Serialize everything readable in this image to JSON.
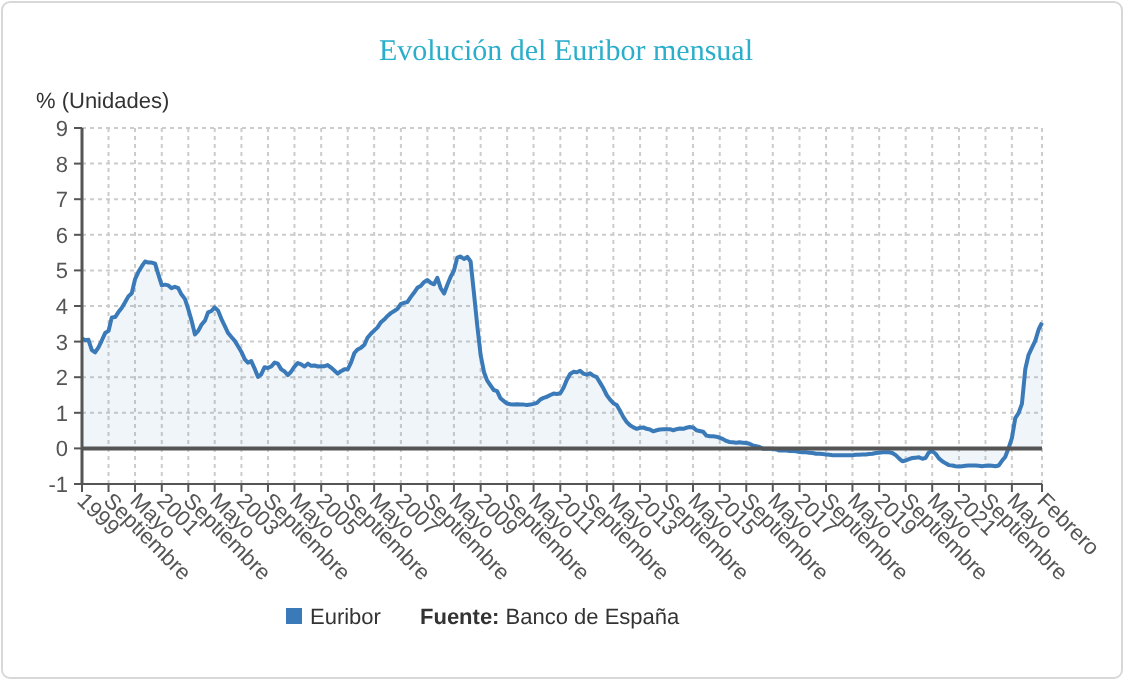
{
  "chart_data": {
    "type": "area",
    "title": "Evolución del Euribor mensual",
    "ylabel": "% (Unidades)",
    "xlim": [
      "1999-01",
      "2023-02"
    ],
    "xticks": [
      {
        "value": "1999-01",
        "label": "1999"
      },
      {
        "value": "1999-09",
        "label": "Septiembre"
      },
      {
        "value": "2000-05",
        "label": "Mayo"
      },
      {
        "value": "2001-01",
        "label": "2001"
      },
      {
        "value": "2001-09",
        "label": "Septiembre"
      },
      {
        "value": "2002-05",
        "label": "Mayo"
      },
      {
        "value": "2003-01",
        "label": "2003"
      },
      {
        "value": "2003-09",
        "label": "Septiembre"
      },
      {
        "value": "2004-05",
        "label": "Mayo"
      },
      {
        "value": "2005-01",
        "label": "2005"
      },
      {
        "value": "2005-09",
        "label": "Septiembre"
      },
      {
        "value": "2006-05",
        "label": "Mayo"
      },
      {
        "value": "2007-01",
        "label": "2007"
      },
      {
        "value": "2007-09",
        "label": "Septiembre"
      },
      {
        "value": "2008-05",
        "label": "Mayo"
      },
      {
        "value": "2009-01",
        "label": "2009"
      },
      {
        "value": "2009-09",
        "label": "Septiembre"
      },
      {
        "value": "2010-05",
        "label": "Mayo"
      },
      {
        "value": "2011-01",
        "label": "2011"
      },
      {
        "value": "2011-09",
        "label": "Septiembre"
      },
      {
        "value": "2012-05",
        "label": "Mayo"
      },
      {
        "value": "2013-01",
        "label": "2013"
      },
      {
        "value": "2013-09",
        "label": "Septiembre"
      },
      {
        "value": "2014-05",
        "label": "Mayo"
      },
      {
        "value": "2015-01",
        "label": "2015"
      },
      {
        "value": "2015-09",
        "label": "Septiembre"
      },
      {
        "value": "2016-05",
        "label": "Mayo"
      },
      {
        "value": "2017-01",
        "label": "2017"
      },
      {
        "value": "2017-09",
        "label": "Septiembre"
      },
      {
        "value": "2018-05",
        "label": "Mayo"
      },
      {
        "value": "2019-01",
        "label": "2019"
      },
      {
        "value": "2019-09",
        "label": "Septiembre"
      },
      {
        "value": "2020-05",
        "label": "Mayo"
      },
      {
        "value": "2021-01",
        "label": "2021"
      },
      {
        "value": "2021-09",
        "label": "Septiembre"
      },
      {
        "value": "2022-05",
        "label": "Mayo"
      },
      {
        "value": "2023-02",
        "label": "Febrero"
      }
    ],
    "ylim": [
      -1,
      9
    ],
    "yticks": [
      -1,
      0,
      1,
      2,
      3,
      4,
      5,
      6,
      7,
      8,
      9
    ],
    "grid": true,
    "legend": "bottom",
    "marker": "none",
    "ref_lines": [
      {
        "axis": "y",
        "value": 0,
        "color": "#555555"
      }
    ],
    "annotations": [
      "Fuente: Banco de España"
    ],
    "series": [
      {
        "name": "Euribor",
        "color": "#3a7ab8",
        "x": [
          "1999-01",
          "1999-02",
          "1999-03",
          "1999-04",
          "1999-05",
          "1999-06",
          "1999-07",
          "1999-08",
          "1999-09",
          "1999-10",
          "1999-11",
          "1999-12",
          "2000-01",
          "2000-02",
          "2000-03",
          "2000-04",
          "2000-05",
          "2000-06",
          "2000-07",
          "2000-08",
          "2000-09",
          "2000-10",
          "2000-11",
          "2000-12",
          "2001-01",
          "2001-02",
          "2001-03",
          "2001-04",
          "2001-05",
          "2001-06",
          "2001-07",
          "2001-08",
          "2001-09",
          "2001-10",
          "2001-11",
          "2001-12",
          "2002-01",
          "2002-02",
          "2002-03",
          "2002-04",
          "2002-05",
          "2002-06",
          "2002-07",
          "2002-08",
          "2002-09",
          "2002-10",
          "2002-11",
          "2002-12",
          "2003-01",
          "2003-02",
          "2003-03",
          "2003-04",
          "2003-05",
          "2003-06",
          "2003-07",
          "2003-08",
          "2003-09",
          "2003-10",
          "2003-11",
          "2003-12",
          "2004-01",
          "2004-02",
          "2004-03",
          "2004-04",
          "2004-05",
          "2004-06",
          "2004-07",
          "2004-08",
          "2004-09",
          "2004-10",
          "2004-11",
          "2004-12",
          "2005-01",
          "2005-02",
          "2005-03",
          "2005-04",
          "2005-05",
          "2005-06",
          "2005-07",
          "2005-08",
          "2005-09",
          "2005-10",
          "2005-11",
          "2005-12",
          "2006-01",
          "2006-02",
          "2006-03",
          "2006-04",
          "2006-05",
          "2006-06",
          "2006-07",
          "2006-08",
          "2006-09",
          "2006-10",
          "2006-11",
          "2006-12",
          "2007-01",
          "2007-02",
          "2007-03",
          "2007-04",
          "2007-05",
          "2007-06",
          "2007-07",
          "2007-08",
          "2007-09",
          "2007-10",
          "2007-11",
          "2007-12",
          "2008-01",
          "2008-02",
          "2008-03",
          "2008-04",
          "2008-05",
          "2008-06",
          "2008-07",
          "2008-08",
          "2008-09",
          "2008-10",
          "2008-11",
          "2008-12",
          "2009-01",
          "2009-02",
          "2009-03",
          "2009-04",
          "2009-05",
          "2009-06",
          "2009-07",
          "2009-08",
          "2009-09",
          "2009-10",
          "2009-11",
          "2009-12",
          "2010-01",
          "2010-02",
          "2010-03",
          "2010-04",
          "2010-05",
          "2010-06",
          "2010-07",
          "2010-08",
          "2010-09",
          "2010-10",
          "2010-11",
          "2010-12",
          "2011-01",
          "2011-02",
          "2011-03",
          "2011-04",
          "2011-05",
          "2011-06",
          "2011-07",
          "2011-08",
          "2011-09",
          "2011-10",
          "2011-11",
          "2011-12",
          "2012-01",
          "2012-02",
          "2012-03",
          "2012-04",
          "2012-05",
          "2012-06",
          "2012-07",
          "2012-08",
          "2012-09",
          "2012-10",
          "2012-11",
          "2012-12",
          "2013-01",
          "2013-02",
          "2013-03",
          "2013-04",
          "2013-05",
          "2013-06",
          "2013-07",
          "2013-08",
          "2013-09",
          "2013-10",
          "2013-11",
          "2013-12",
          "2014-01",
          "2014-02",
          "2014-03",
          "2014-04",
          "2014-05",
          "2014-06",
          "2014-07",
          "2014-08",
          "2014-09",
          "2014-10",
          "2014-11",
          "2014-12",
          "2015-01",
          "2015-02",
          "2015-03",
          "2015-04",
          "2015-05",
          "2015-06",
          "2015-07",
          "2015-08",
          "2015-09",
          "2015-10",
          "2015-11",
          "2015-12",
          "2016-01",
          "2016-02",
          "2016-03",
          "2016-04",
          "2016-05",
          "2016-06",
          "2016-07",
          "2016-08",
          "2016-09",
          "2016-10",
          "2016-11",
          "2016-12",
          "2017-01",
          "2017-02",
          "2017-03",
          "2017-04",
          "2017-05",
          "2017-06",
          "2017-07",
          "2017-08",
          "2017-09",
          "2017-10",
          "2017-11",
          "2017-12",
          "2018-01",
          "2018-02",
          "2018-03",
          "2018-04",
          "2018-05",
          "2018-06",
          "2018-07",
          "2018-08",
          "2018-09",
          "2018-10",
          "2018-11",
          "2018-12",
          "2019-01",
          "2019-02",
          "2019-03",
          "2019-04",
          "2019-05",
          "2019-06",
          "2019-07",
          "2019-08",
          "2019-09",
          "2019-10",
          "2019-11",
          "2019-12",
          "2020-01",
          "2020-02",
          "2020-03",
          "2020-04",
          "2020-05",
          "2020-06",
          "2020-07",
          "2020-08",
          "2020-09",
          "2020-10",
          "2020-11",
          "2020-12",
          "2021-01",
          "2021-02",
          "2021-03",
          "2021-04",
          "2021-05",
          "2021-06",
          "2021-07",
          "2021-08",
          "2021-09",
          "2021-10",
          "2021-11",
          "2021-12",
          "2022-01",
          "2022-02",
          "2022-03",
          "2022-04",
          "2022-05",
          "2022-06",
          "2022-07",
          "2022-08",
          "2022-09",
          "2022-10",
          "2022-11",
          "2022-12",
          "2023-01",
          "2023-02"
        ],
        "values": [
          3.09,
          3.04,
          3.05,
          2.76,
          2.7,
          2.84,
          3.03,
          3.24,
          3.3,
          3.68,
          3.69,
          3.83,
          3.95,
          4.11,
          4.27,
          4.36,
          4.75,
          4.96,
          5.11,
          5.25,
          5.22,
          5.22,
          5.19,
          4.88,
          4.58,
          4.6,
          4.58,
          4.5,
          4.54,
          4.5,
          4.32,
          4.2,
          3.91,
          3.59,
          3.2,
          3.3,
          3.48,
          3.59,
          3.82,
          3.86,
          3.96,
          3.87,
          3.64,
          3.44,
          3.24,
          3.13,
          3.02,
          2.87,
          2.71,
          2.5,
          2.41,
          2.45,
          2.25,
          2.01,
          2.08,
          2.28,
          2.26,
          2.3,
          2.41,
          2.38,
          2.22,
          2.16,
          2.06,
          2.16,
          2.3,
          2.4,
          2.36,
          2.3,
          2.38,
          2.32,
          2.33,
          2.3,
          2.31,
          2.31,
          2.34,
          2.27,
          2.19,
          2.1,
          2.17,
          2.22,
          2.22,
          2.41,
          2.68,
          2.78,
          2.83,
          2.91,
          3.11,
          3.22,
          3.31,
          3.4,
          3.54,
          3.62,
          3.72,
          3.8,
          3.86,
          3.92,
          4.06,
          4.09,
          4.11,
          4.25,
          4.37,
          4.51,
          4.56,
          4.67,
          4.73,
          4.65,
          4.61,
          4.79,
          4.5,
          4.35,
          4.59,
          4.82,
          4.99,
          5.36,
          5.39,
          5.32,
          5.38,
          5.25,
          4.35,
          3.45,
          2.62,
          2.14,
          1.91,
          1.77,
          1.64,
          1.61,
          1.41,
          1.33,
          1.26,
          1.24,
          1.23,
          1.24,
          1.23,
          1.23,
          1.22,
          1.23,
          1.25,
          1.28,
          1.37,
          1.42,
          1.45,
          1.5,
          1.54,
          1.53,
          1.55,
          1.71,
          1.92,
          2.09,
          2.15,
          2.14,
          2.18,
          2.1,
          2.07,
          2.11,
          2.04,
          2.0,
          1.84,
          1.68,
          1.5,
          1.37,
          1.27,
          1.22,
          1.06,
          0.88,
          0.74,
          0.65,
          0.59,
          0.55,
          0.58,
          0.59,
          0.55,
          0.53,
          0.48,
          0.51,
          0.53,
          0.54,
          0.54,
          0.54,
          0.51,
          0.54,
          0.56,
          0.55,
          0.58,
          0.6,
          0.59,
          0.51,
          0.49,
          0.47,
          0.36,
          0.34,
          0.34,
          0.33,
          0.3,
          0.26,
          0.21,
          0.18,
          0.17,
          0.16,
          0.17,
          0.16,
          0.15,
          0.13,
          0.08,
          0.06,
          0.04,
          -0.01,
          -0.01,
          -0.01,
          -0.01,
          -0.03,
          -0.06,
          -0.05,
          -0.06,
          -0.07,
          -0.07,
          -0.08,
          -0.1,
          -0.11,
          -0.11,
          -0.12,
          -0.13,
          -0.15,
          -0.15,
          -0.16,
          -0.17,
          -0.18,
          -0.19,
          -0.19,
          -0.19,
          -0.19,
          -0.19,
          -0.19,
          -0.19,
          -0.18,
          -0.18,
          -0.17,
          -0.17,
          -0.16,
          -0.15,
          -0.13,
          -0.12,
          -0.11,
          -0.11,
          -0.11,
          -0.13,
          -0.19,
          -0.28,
          -0.36,
          -0.34,
          -0.3,
          -0.27,
          -0.26,
          -0.25,
          -0.29,
          -0.27,
          -0.11,
          -0.08,
          -0.15,
          -0.28,
          -0.36,
          -0.42,
          -0.47,
          -0.48,
          -0.5,
          -0.51,
          -0.5,
          -0.49,
          -0.48,
          -0.48,
          -0.48,
          -0.49,
          -0.5,
          -0.49,
          -0.48,
          -0.49,
          -0.5,
          -0.48,
          -0.34,
          -0.24,
          0.01,
          0.29,
          0.85,
          0.99,
          1.25,
          2.23,
          2.63,
          2.83,
          3.02,
          3.34,
          3.53
        ]
      }
    ]
  }
}
